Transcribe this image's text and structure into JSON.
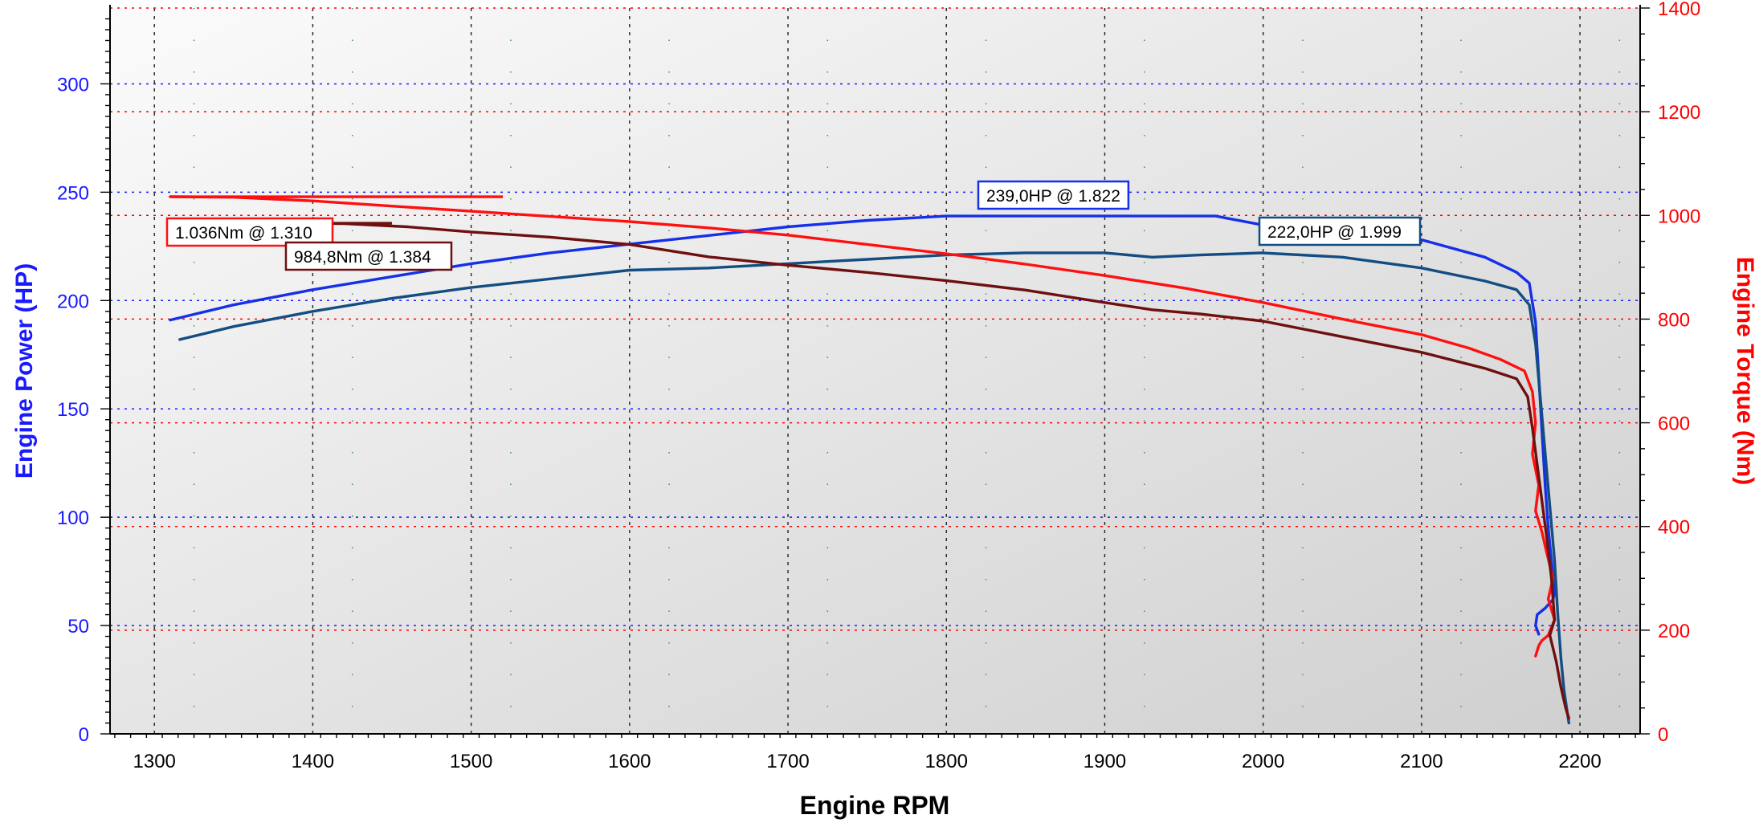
{
  "chart_data": {
    "type": "line",
    "title": "",
    "xlabel": "Engine RPM",
    "ylabel_left": "Engine Power (HP)",
    "ylabel_right": "Engine Torque (Nm)",
    "xlim": [
      1272,
      2238
    ],
    "ylim_left": [
      0,
      335
    ],
    "ylim_right": [
      0,
      1400
    ],
    "x_ticks": [
      1300,
      1400,
      1500,
      1600,
      1700,
      1800,
      1900,
      2000,
      2100,
      2200
    ],
    "y_left_ticks": [
      0,
      50,
      100,
      150,
      200,
      250,
      300
    ],
    "y_right_ticks": [
      0,
      200,
      400,
      600,
      800,
      1000,
      1200,
      1400
    ],
    "grid": true,
    "legend": "none",
    "colors": {
      "left_axis": "#1a1aff",
      "right_axis": "#ff0000",
      "power_1": "#1530e8",
      "power_2": "#134d82",
      "torque_1": "#ff1010",
      "torque_2": "#6e1010"
    },
    "series": [
      {
        "axis": "left",
        "color": "#1530e8",
        "x": [
          1310,
          1350,
          1400,
          1450,
          1500,
          1550,
          1600,
          1650,
          1700,
          1750,
          1800,
          1822,
          1850,
          1900,
          1950,
          1970,
          1999,
          2050,
          2100,
          2140,
          2160,
          2168,
          2172,
          2174,
          2176,
          2178,
          2180,
          2182,
          2184,
          2183,
          2178,
          2173,
          2172,
          2174
        ],
        "y": [
          191,
          198,
          205,
          211,
          217,
          222,
          226,
          230,
          234,
          237,
          239,
          239,
          239,
          239,
          239,
          239,
          235,
          232,
          228,
          220,
          213,
          208,
          190,
          165,
          140,
          115,
          95,
          80,
          65,
          62,
          58,
          55,
          50,
          46
        ]
      },
      {
        "axis": "left",
        "color": "#134d82",
        "x": [
          1316,
          1350,
          1400,
          1450,
          1500,
          1550,
          1600,
          1650,
          1700,
          1750,
          1800,
          1850,
          1900,
          1930,
          1960,
          1999,
          2050,
          2100,
          2140,
          2160,
          2168,
          2172,
          2175,
          2178,
          2181,
          2184,
          2186,
          2188,
          2190,
          2193
        ],
        "y": [
          182,
          188,
          195,
          201,
          206,
          210,
          214,
          215,
          217,
          219,
          221,
          222,
          222,
          220,
          221,
          222,
          220,
          215,
          209,
          205,
          198,
          180,
          155,
          130,
          105,
          80,
          55,
          35,
          20,
          5
        ]
      },
      {
        "axis": "right",
        "color": "#ff1010",
        "x": [
          1310,
          1350,
          1400,
          1450,
          1500,
          1550,
          1600,
          1650,
          1700,
          1750,
          1800,
          1850,
          1900,
          1950,
          2000,
          2050,
          2100,
          2130,
          2150,
          2165,
          2170,
          2172,
          2170,
          2174,
          2172,
          2176,
          2179,
          2183,
          2180,
          2184,
          2180,
          2176,
          2174,
          2172
        ],
        "y": [
          1036,
          1035,
          1028,
          1018,
          1008,
          998,
          988,
          976,
          962,
          944,
          926,
          906,
          884,
          860,
          832,
          800,
          770,
          744,
          722,
          700,
          660,
          600,
          540,
          480,
          430,
          390,
          350,
          300,
          260,
          220,
          190,
          180,
          170,
          150
        ]
      },
      {
        "axis": "right",
        "color": "#6e1010",
        "x": [
          1316,
          1350,
          1384,
          1420,
          1460,
          1500,
          1550,
          1600,
          1650,
          1700,
          1750,
          1800,
          1850,
          1900,
          1930,
          1960,
          2000,
          2050,
          2100,
          2140,
          2160,
          2167,
          2170,
          2173,
          2176,
          2179,
          2182,
          2184,
          2181,
          2185,
          2188,
          2191,
          2193
        ],
        "y": [
          984.8,
          984.8,
          984.8,
          984,
          978,
          968,
          958,
          944,
          920,
          904,
          890,
          874,
          856,
          832,
          818,
          810,
          796,
          766,
          736,
          705,
          685,
          650,
          590,
          520,
          450,
          380,
          300,
          220,
          190,
          140,
          90,
          50,
          30
        ]
      }
    ],
    "annotations": [
      {
        "text": "239,0HP @ 1.822",
        "axis": "left",
        "color": "#1530e8"
      },
      {
        "text": "222,0HP @ 1.999",
        "axis": "left",
        "color": "#134d82"
      },
      {
        "text": "1.036Nm @ 1.310",
        "axis": "right",
        "color": "#ff1010"
      },
      {
        "text": "984,8Nm @ 1.384",
        "axis": "right",
        "color": "#6e1010"
      }
    ]
  }
}
